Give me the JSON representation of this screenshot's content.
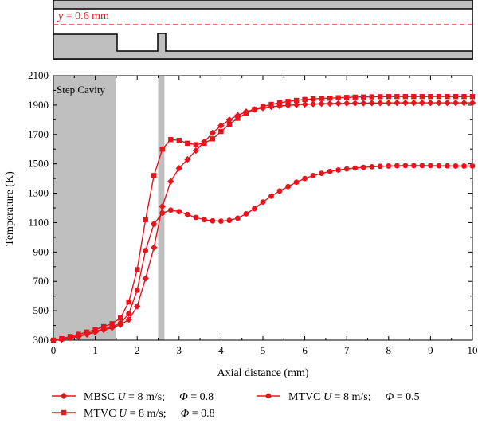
{
  "colors": {
    "series": "#e8141c",
    "shading": "#bfbfbf",
    "geometry_fill": "#bfbfbf",
    "axis": "#000000"
  },
  "geometry": {
    "label_var": "y",
    "label_rest": " = 0.6 mm"
  },
  "chart_data": {
    "type": "line",
    "xlabel": "Axial distance (mm)",
    "ylabel": "Temperature (K)",
    "xlim": [
      0,
      10
    ],
    "ylim": [
      300,
      2100
    ],
    "xticks": [
      0,
      1,
      2,
      3,
      4,
      5,
      6,
      7,
      8,
      9,
      10
    ],
    "yticks": [
      300,
      500,
      700,
      900,
      1100,
      1300,
      1500,
      1700,
      1900,
      2100
    ],
    "grid": false,
    "legend_placement": "bottom",
    "annotations": [
      {
        "text": "Step Cavity",
        "x_range": [
          0,
          1.5
        ]
      },
      {
        "text": "",
        "x_range": [
          2.5,
          2.65
        ]
      }
    ],
    "series": [
      {
        "name": "MBSC U = 8 m/s;     Φ = 0.8",
        "legend_parts": [
          "MBSC ",
          "U",
          " = 8 m/s;",
          "Φ",
          " = 0.8"
        ],
        "marker": "diamond",
        "x": [
          0,
          0.2,
          0.4,
          0.6,
          0.8,
          1.0,
          1.2,
          1.4,
          1.6,
          1.8,
          2.0,
          2.2,
          2.4,
          2.6,
          2.8,
          3.0,
          3.2,
          3.4,
          3.6,
          3.8,
          4.0,
          4.2,
          4.4,
          4.6,
          4.8,
          5.0,
          5.2,
          5.4,
          5.6,
          5.8,
          6.0,
          6.2,
          6.4,
          6.6,
          6.8,
          7.0,
          7.2,
          7.4,
          7.6,
          7.8,
          8.0,
          8.2,
          8.4,
          8.6,
          8.8,
          9.0,
          9.2,
          9.4,
          9.6,
          9.8,
          10.0
        ],
        "y": [
          300,
          305,
          315,
          325,
          340,
          355,
          370,
          385,
          405,
          440,
          530,
          720,
          930,
          1210,
          1380,
          1470,
          1530,
          1590,
          1650,
          1710,
          1760,
          1800,
          1830,
          1855,
          1870,
          1880,
          1888,
          1894,
          1898,
          1902,
          1905,
          1907,
          1909,
          1910,
          1911,
          1912,
          1913,
          1913,
          1914,
          1914,
          1914,
          1915,
          1915,
          1915,
          1915,
          1915,
          1915,
          1915,
          1915,
          1915,
          1915
        ]
      },
      {
        "name": "MTVC U = 8 m/s;     Φ = 0.8",
        "legend_parts": [
          "MTVC ",
          "U",
          " = 8 m/s;",
          "Φ",
          " = 0.8"
        ],
        "marker": "square",
        "x": [
          0,
          0.2,
          0.4,
          0.6,
          0.8,
          1.0,
          1.2,
          1.4,
          1.6,
          1.8,
          2.0,
          2.2,
          2.4,
          2.6,
          2.8,
          3.0,
          3.2,
          3.4,
          3.6,
          3.8,
          4.0,
          4.2,
          4.4,
          4.6,
          4.8,
          5.0,
          5.2,
          5.4,
          5.6,
          5.8,
          6.0,
          6.2,
          6.4,
          6.6,
          6.8,
          7.0,
          7.2,
          7.4,
          7.6,
          7.8,
          8.0,
          8.2,
          8.4,
          8.6,
          8.8,
          9.0,
          9.2,
          9.4,
          9.6,
          9.8,
          10.0
        ],
        "y": [
          300,
          310,
          325,
          340,
          355,
          372,
          392,
          412,
          450,
          560,
          780,
          1120,
          1420,
          1600,
          1665,
          1660,
          1640,
          1630,
          1640,
          1670,
          1720,
          1770,
          1810,
          1845,
          1870,
          1890,
          1905,
          1915,
          1925,
          1932,
          1938,
          1942,
          1945,
          1947,
          1950,
          1952,
          1954,
          1955,
          1956,
          1957,
          1958,
          1958,
          1958,
          1958,
          1958,
          1958,
          1958,
          1958,
          1958,
          1958,
          1958
        ]
      },
      {
        "name": "MTVC U = 8 m/s;     Φ = 0.5",
        "legend_parts": [
          "MTVC ",
          "U",
          " = 8 m/s;",
          "Φ",
          " = 0.5"
        ],
        "marker": "circle",
        "x": [
          0,
          0.2,
          0.4,
          0.6,
          0.8,
          1.0,
          1.2,
          1.4,
          1.6,
          1.8,
          2.0,
          2.2,
          2.4,
          2.6,
          2.8,
          3.0,
          3.2,
          3.4,
          3.6,
          3.8,
          4.0,
          4.2,
          4.4,
          4.6,
          4.8,
          5.0,
          5.2,
          5.4,
          5.6,
          5.8,
          6.0,
          6.2,
          6.4,
          6.6,
          6.8,
          7.0,
          7.2,
          7.4,
          7.6,
          7.8,
          8.0,
          8.2,
          8.4,
          8.6,
          8.8,
          9.0,
          9.2,
          9.4,
          9.6,
          9.8,
          10.0
        ],
        "y": [
          300,
          307,
          318,
          330,
          345,
          360,
          375,
          392,
          415,
          480,
          640,
          910,
          1090,
          1165,
          1185,
          1175,
          1155,
          1135,
          1120,
          1112,
          1110,
          1115,
          1130,
          1160,
          1195,
          1240,
          1280,
          1315,
          1345,
          1375,
          1400,
          1420,
          1435,
          1448,
          1458,
          1465,
          1471,
          1476,
          1480,
          1483,
          1485,
          1487,
          1488,
          1488,
          1488,
          1488,
          1487,
          1486,
          1485,
          1485,
          1485
        ]
      }
    ]
  }
}
